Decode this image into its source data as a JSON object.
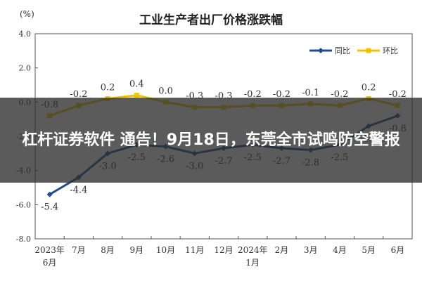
{
  "overlay": {
    "headline": "杠杆证券软件 通告！9月18日，东莞全市试鸣防空警报"
  },
  "colors": {
    "series_yoy": "#1f4e8c",
    "series_mom": "#f2c200",
    "overlay_bg": "#2d2d2d"
  },
  "chart_data": {
    "type": "line",
    "title": "工业生产者出厂价格涨跌幅",
    "ylabel": "(%)",
    "xlabel": "",
    "ylim": [
      -8.0,
      4.0
    ],
    "yticks": [
      "4.0",
      "2.0",
      "0.0",
      "-2.0",
      "-4.0",
      "-6.0",
      "-8.0"
    ],
    "ytick_values": [
      4,
      2,
      0,
      -2,
      -4,
      -6,
      -8
    ],
    "grid": false,
    "legend": "top-right",
    "categories": [
      [
        "2023年",
        "6月"
      ],
      [
        "7月"
      ],
      [
        "8月"
      ],
      [
        "9月"
      ],
      [
        "10月"
      ],
      [
        "11月"
      ],
      [
        "12月"
      ],
      [
        "2024年",
        "1月"
      ],
      [
        "2月"
      ],
      [
        "3月"
      ],
      [
        "4月"
      ],
      [
        "5月"
      ],
      [
        "6月"
      ]
    ],
    "series": [
      {
        "name": "同比",
        "color": "#1f4e8c",
        "values": [
          -5.4,
          -4.4,
          -3.0,
          -2.5,
          -2.6,
          -3.0,
          -2.7,
          -2.5,
          -2.7,
          -2.8,
          -2.5,
          -1.4,
          -0.8
        ],
        "labels": [
          "-5.4",
          "-4.4",
          "-3.0",
          "-2.5",
          "-2.6",
          "-3.0",
          "-2.7",
          "-2.5",
          "-2.7",
          "-2.8",
          "-2.5",
          "-1.4",
          "-0.8"
        ]
      },
      {
        "name": "环比",
        "color": "#f2c200",
        "values": [
          -0.8,
          -0.2,
          0.2,
          0.4,
          0.0,
          -0.3,
          -0.3,
          -0.2,
          -0.2,
          -0.1,
          -0.2,
          0.2,
          -0.2
        ],
        "labels": [
          "-0.8",
          "-0.2",
          "0.2",
          "0.4",
          "0.0",
          "-0.3",
          "-0.3",
          "-0.2",
          "-0.2",
          "-0.1",
          "-0.2",
          "0.2",
          "-0.2"
        ]
      }
    ]
  }
}
